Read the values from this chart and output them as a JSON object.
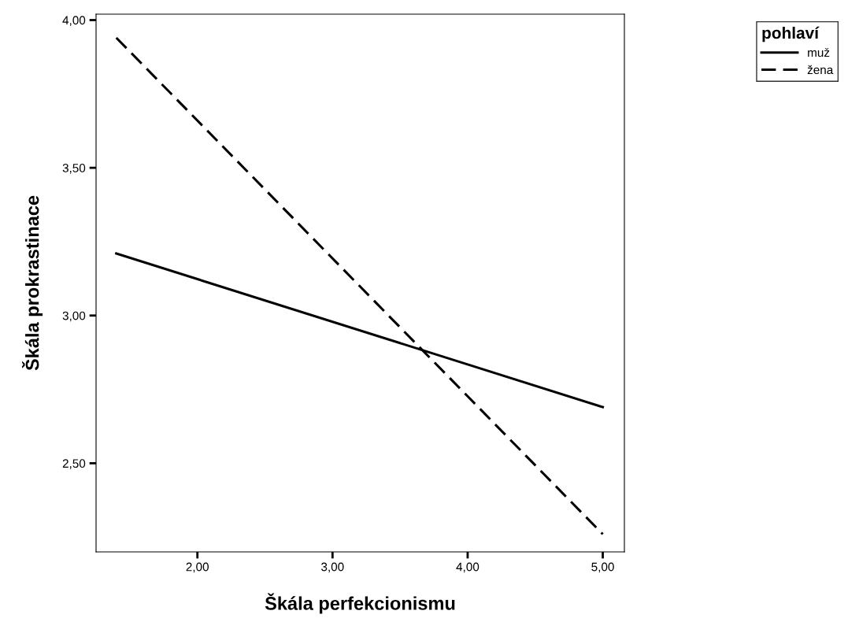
{
  "chart_data": {
    "type": "line",
    "xlabel": "Škála perfekcionismu",
    "ylabel": "Škála prokrastinace",
    "legend_title": "pohlaví",
    "x": [
      1.4,
      5.0
    ],
    "series": [
      {
        "name": "muž",
        "color": "#000000",
        "values": [
          3.21,
          2.69
        ],
        "line_style": "solid"
      },
      {
        "name": "žena",
        "color": "#000000",
        "values": [
          3.94,
          2.26
        ],
        "line_style": "dashed"
      }
    ],
    "xlim": [
      1.25,
      5.16
    ],
    "ylim": [
      2.2,
      4.02
    ],
    "xticks": [
      {
        "value": 2,
        "label": "2,00"
      },
      {
        "value": 3,
        "label": "3,00"
      },
      {
        "value": 4,
        "label": "4,00"
      },
      {
        "value": 5,
        "label": "5,00"
      }
    ],
    "yticks": [
      {
        "value": 2.5,
        "label": "2,50"
      },
      {
        "value": 3,
        "label": "3,00"
      },
      {
        "value": 3.5,
        "label": "3,50"
      },
      {
        "value": 4,
        "label": "4,00"
      }
    ],
    "grid": false,
    "legend": "top right",
    "marker": "none"
  }
}
